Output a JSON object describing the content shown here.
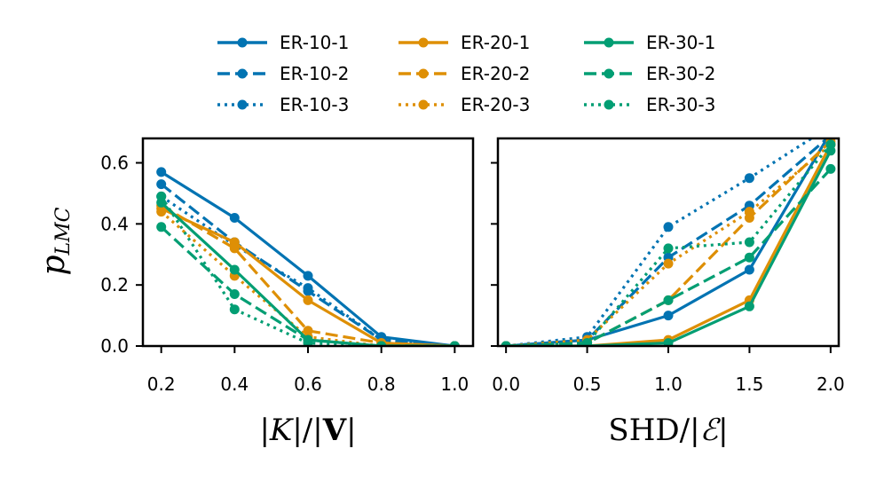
{
  "legend": [
    {
      "name": "ER-10-1",
      "color": "#0173b2",
      "dash": "solid"
    },
    {
      "name": "ER-10-2",
      "color": "#0173b2",
      "dash": "dashed"
    },
    {
      "name": "ER-10-3",
      "color": "#0173b2",
      "dash": "dotted"
    },
    {
      "name": "ER-20-1",
      "color": "#de8f05",
      "dash": "solid"
    },
    {
      "name": "ER-20-2",
      "color": "#de8f05",
      "dash": "dashed"
    },
    {
      "name": "ER-20-3",
      "color": "#de8f05",
      "dash": "dotted"
    },
    {
      "name": "ER-30-1",
      "color": "#029e73",
      "dash": "solid"
    },
    {
      "name": "ER-30-2",
      "color": "#029e73",
      "dash": "dashed"
    },
    {
      "name": "ER-30-3",
      "color": "#029e73",
      "dash": "dotted"
    }
  ],
  "chart_data": [
    {
      "type": "line",
      "xlabel": "|K|/|V|",
      "ylabel": "p_LMC",
      "ylabel_main": "p",
      "ylabel_sub": "LMC",
      "xlim": [
        0.15,
        1.05
      ],
      "ylim": [
        0.0,
        0.68
      ],
      "xticks": [
        0.2,
        0.4,
        0.6,
        0.8,
        1.0
      ],
      "xtick_labels": [
        "0.2",
        "0.4",
        "0.6",
        "0.8",
        "1.0"
      ],
      "yticks": [
        0.0,
        0.2,
        0.4,
        0.6
      ],
      "ytick_labels": [
        "0.0",
        "0.2",
        "0.4",
        "0.6"
      ],
      "series": [
        {
          "name": "ER-10-1",
          "x": [
            0.2,
            0.4,
            0.6,
            0.8,
            1.0
          ],
          "y": [
            0.57,
            0.42,
            0.23,
            0.03,
            0.0
          ]
        },
        {
          "name": "ER-10-2",
          "x": [
            0.2,
            0.4,
            0.6,
            0.8,
            1.0
          ],
          "y": [
            0.53,
            0.34,
            0.18,
            0.02,
            0.0
          ]
        },
        {
          "name": "ER-10-3",
          "x": [
            0.2,
            0.4,
            0.6,
            0.8,
            1.0
          ],
          "y": [
            0.49,
            0.33,
            0.19,
            0.02,
            0.0
          ]
        },
        {
          "name": "ER-20-1",
          "x": [
            0.2,
            0.4,
            0.6,
            0.8,
            1.0
          ],
          "y": [
            0.45,
            0.34,
            0.15,
            0.01,
            0.0
          ]
        },
        {
          "name": "ER-20-2",
          "x": [
            0.2,
            0.4,
            0.6,
            0.8,
            1.0
          ],
          "y": [
            0.46,
            0.32,
            0.05,
            0.01,
            0.0
          ]
        },
        {
          "name": "ER-20-3",
          "x": [
            0.2,
            0.4,
            0.6,
            0.8,
            1.0
          ],
          "y": [
            0.44,
            0.23,
            0.03,
            0.0,
            0.0
          ]
        },
        {
          "name": "ER-30-1",
          "x": [
            0.2,
            0.4,
            0.6,
            0.8,
            1.0
          ],
          "y": [
            0.47,
            0.25,
            0.02,
            0.0,
            0.0
          ]
        },
        {
          "name": "ER-30-2",
          "x": [
            0.2,
            0.4,
            0.6,
            0.8,
            1.0
          ],
          "y": [
            0.39,
            0.17,
            0.02,
            0.0,
            0.0
          ]
        },
        {
          "name": "ER-30-3",
          "x": [
            0.2,
            0.4,
            0.6,
            0.8,
            1.0
          ],
          "y": [
            0.49,
            0.12,
            0.01,
            0.0,
            0.0
          ]
        }
      ]
    },
    {
      "type": "line",
      "xlabel": "SHD/|E|",
      "ylabel": "",
      "xlim": [
        -0.05,
        2.05
      ],
      "ylim": [
        0.0,
        0.68
      ],
      "xticks": [
        0.0,
        0.5,
        1.0,
        1.5,
        2.0
      ],
      "xtick_labels": [
        "0.0",
        "0.5",
        "1.0",
        "1.5",
        "2.0"
      ],
      "yticks": [
        0.0,
        0.2,
        0.4,
        0.6
      ],
      "ytick_labels": [
        "",
        "",
        "",
        ""
      ],
      "series": [
        {
          "name": "ER-10-1",
          "x": [
            0.0,
            0.5,
            1.0,
            1.5,
            2.0
          ],
          "y": [
            0.0,
            0.02,
            0.1,
            0.25,
            0.7
          ]
        },
        {
          "name": "ER-10-2",
          "x": [
            0.0,
            0.5,
            1.0,
            1.5,
            2.0
          ],
          "y": [
            0.0,
            0.02,
            0.29,
            0.46,
            0.69
          ]
        },
        {
          "name": "ER-10-3",
          "x": [
            0.0,
            0.5,
            1.0,
            1.5,
            2.0
          ],
          "y": [
            0.0,
            0.03,
            0.39,
            0.55,
            0.72
          ]
        },
        {
          "name": "ER-20-1",
          "x": [
            0.0,
            0.5,
            1.0,
            1.5,
            2.0
          ],
          "y": [
            0.0,
            0.0,
            0.02,
            0.15,
            0.66
          ]
        },
        {
          "name": "ER-20-2",
          "x": [
            0.0,
            0.5,
            1.0,
            1.5,
            2.0
          ],
          "y": [
            0.0,
            0.01,
            0.15,
            0.42,
            0.67
          ]
        },
        {
          "name": "ER-20-3",
          "x": [
            0.0,
            0.5,
            1.0,
            1.5,
            2.0
          ],
          "y": [
            0.0,
            0.02,
            0.27,
            0.44,
            0.66
          ]
        },
        {
          "name": "ER-30-1",
          "x": [
            0.0,
            0.5,
            1.0,
            1.5,
            2.0
          ],
          "y": [
            0.0,
            0.0,
            0.01,
            0.13,
            0.64
          ]
        },
        {
          "name": "ER-30-2",
          "x": [
            0.0,
            0.5,
            1.0,
            1.5,
            2.0
          ],
          "y": [
            0.0,
            0.01,
            0.15,
            0.29,
            0.58
          ]
        },
        {
          "name": "ER-30-3",
          "x": [
            0.0,
            0.5,
            1.0,
            1.5,
            2.0
          ],
          "y": [
            0.0,
            0.01,
            0.32,
            0.34,
            0.66
          ]
        }
      ]
    }
  ]
}
